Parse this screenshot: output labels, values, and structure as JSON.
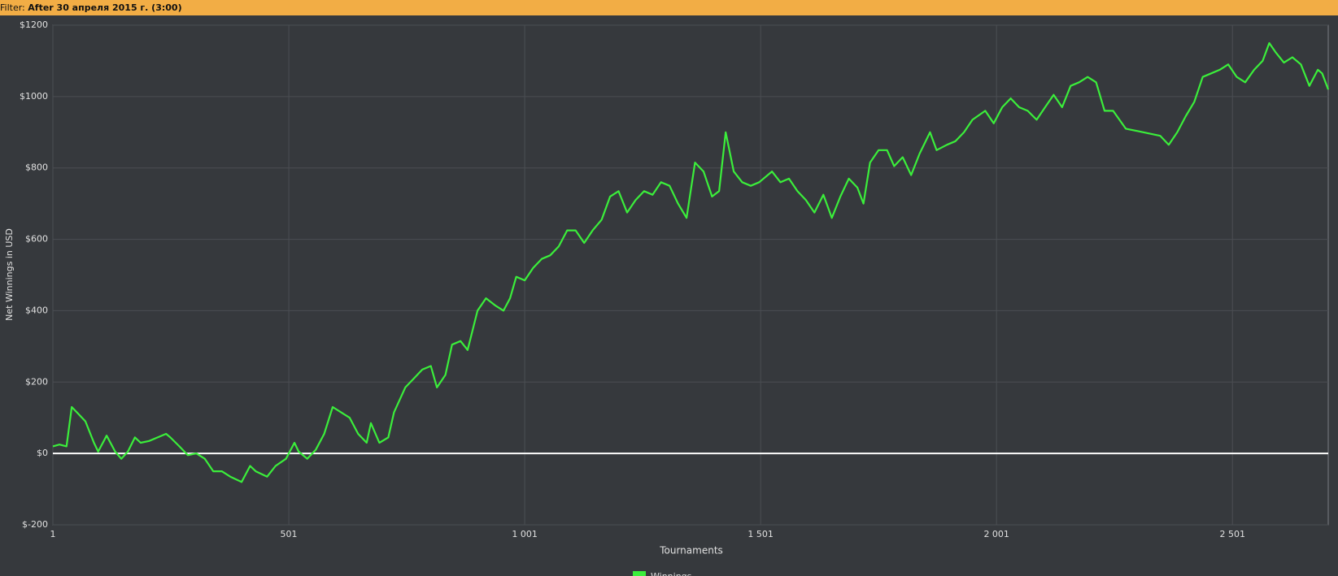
{
  "filter": {
    "label": "Filter:",
    "value": "After 30 апреля 2015 г. (3:00)"
  },
  "chart_data": {
    "type": "line",
    "y_label": "Net Winnings in USD",
    "x_label": "Tournaments",
    "x": [
      1,
      15,
      30,
      41,
      52,
      70,
      88,
      97,
      115,
      133,
      146,
      160,
      175,
      187,
      205,
      223,
      241,
      250,
      269,
      287,
      305,
      323,
      341,
      359,
      377,
      401,
      419,
      431,
      455,
      473,
      495,
      513,
      522,
      540,
      558,
      576,
      594,
      612,
      630,
      648,
      666,
      675,
      693,
      712,
      724,
      748,
      766,
      784,
      802,
      815,
      833,
      847,
      865,
      880,
      901,
      919,
      938,
      956,
      970,
      983,
      1001,
      1019,
      1037,
      1055,
      1073,
      1091,
      1109,
      1127,
      1145,
      1164,
      1182,
      1200,
      1218,
      1236,
      1254,
      1272,
      1290,
      1308,
      1326,
      1344,
      1362,
      1380,
      1398,
      1413,
      1427,
      1444,
      1462,
      1480,
      1498,
      1525,
      1543,
      1561,
      1579,
      1597,
      1615,
      1634,
      1652,
      1670,
      1688,
      1706,
      1719,
      1733,
      1751,
      1769,
      1784,
      1802,
      1820,
      1838,
      1860,
      1874,
      1896,
      1914,
      1932,
      1950,
      1977,
      1995,
      2013,
      2031,
      2049,
      2067,
      2086,
      2104,
      2122,
      2140,
      2158,
      2176,
      2194,
      2212,
      2230,
      2248,
      2275,
      2312,
      2348,
      2366,
      2384,
      2402,
      2420,
      2438,
      2456,
      2474,
      2492,
      2510,
      2528,
      2547,
      2565,
      2579,
      2592,
      2610,
      2628,
      2646,
      2664,
      2682,
      2691,
      2704
    ],
    "series": [
      {
        "name": "Winnings",
        "color": "#3bee3b",
        "values": [
          20,
          25,
          20,
          130,
          115,
          90,
          30,
          5,
          50,
          5,
          -15,
          5,
          45,
          30,
          35,
          45,
          55,
          45,
          20,
          -5,
          0,
          -15,
          -50,
          -50,
          -65,
          -80,
          -35,
          -50,
          -65,
          -35,
          -15,
          30,
          5,
          -15,
          10,
          55,
          130,
          115,
          100,
          55,
          30,
          85,
          30,
          45,
          115,
          185,
          210,
          235,
          245,
          185,
          220,
          305,
          315,
          290,
          400,
          435,
          415,
          400,
          435,
          495,
          485,
          520,
          545,
          555,
          580,
          625,
          625,
          590,
          625,
          655,
          720,
          735,
          675,
          710,
          735,
          725,
          760,
          750,
          700,
          660,
          815,
          790,
          720,
          735,
          900,
          790,
          760,
          750,
          760,
          790,
          760,
          770,
          735,
          710,
          675,
          725,
          660,
          720,
          770,
          745,
          700,
          815,
          850,
          850,
          805,
          830,
          780,
          840,
          900,
          850,
          865,
          875,
          900,
          935,
          960,
          925,
          970,
          995,
          970,
          960,
          935,
          970,
          1005,
          970,
          1030,
          1040,
          1055,
          1040,
          960,
          960,
          910,
          900,
          890,
          865,
          900,
          945,
          985,
          1055,
          1065,
          1075,
          1090,
          1055,
          1040,
          1075,
          1100,
          1150,
          1125,
          1095,
          1110,
          1090,
          1030,
          1075,
          1065,
          1020
        ]
      }
    ],
    "xlim": [
      1,
      2704
    ],
    "xticks": [
      1,
      501,
      {
        "value": 1001,
        "label": "1 001"
      },
      {
        "value": 1501,
        "label": "1 501"
      },
      {
        "value": 2001,
        "label": "2 001"
      },
      {
        "value": 2501,
        "label": "2 501"
      }
    ],
    "ylim": [
      -200,
      1200
    ],
    "yticks": [
      {
        "value": -200,
        "label": "$-200"
      },
      {
        "value": 0,
        "label": "$0"
      },
      {
        "value": 200,
        "label": "$200"
      },
      {
        "value": 400,
        "label": "$400"
      },
      {
        "value": 600,
        "label": "$600"
      },
      {
        "value": 800,
        "label": "$800"
      },
      {
        "value": 1000,
        "label": "$1000"
      },
      {
        "value": 1200,
        "label": "$1200"
      }
    ],
    "grid": true,
    "legend": "bottom"
  }
}
